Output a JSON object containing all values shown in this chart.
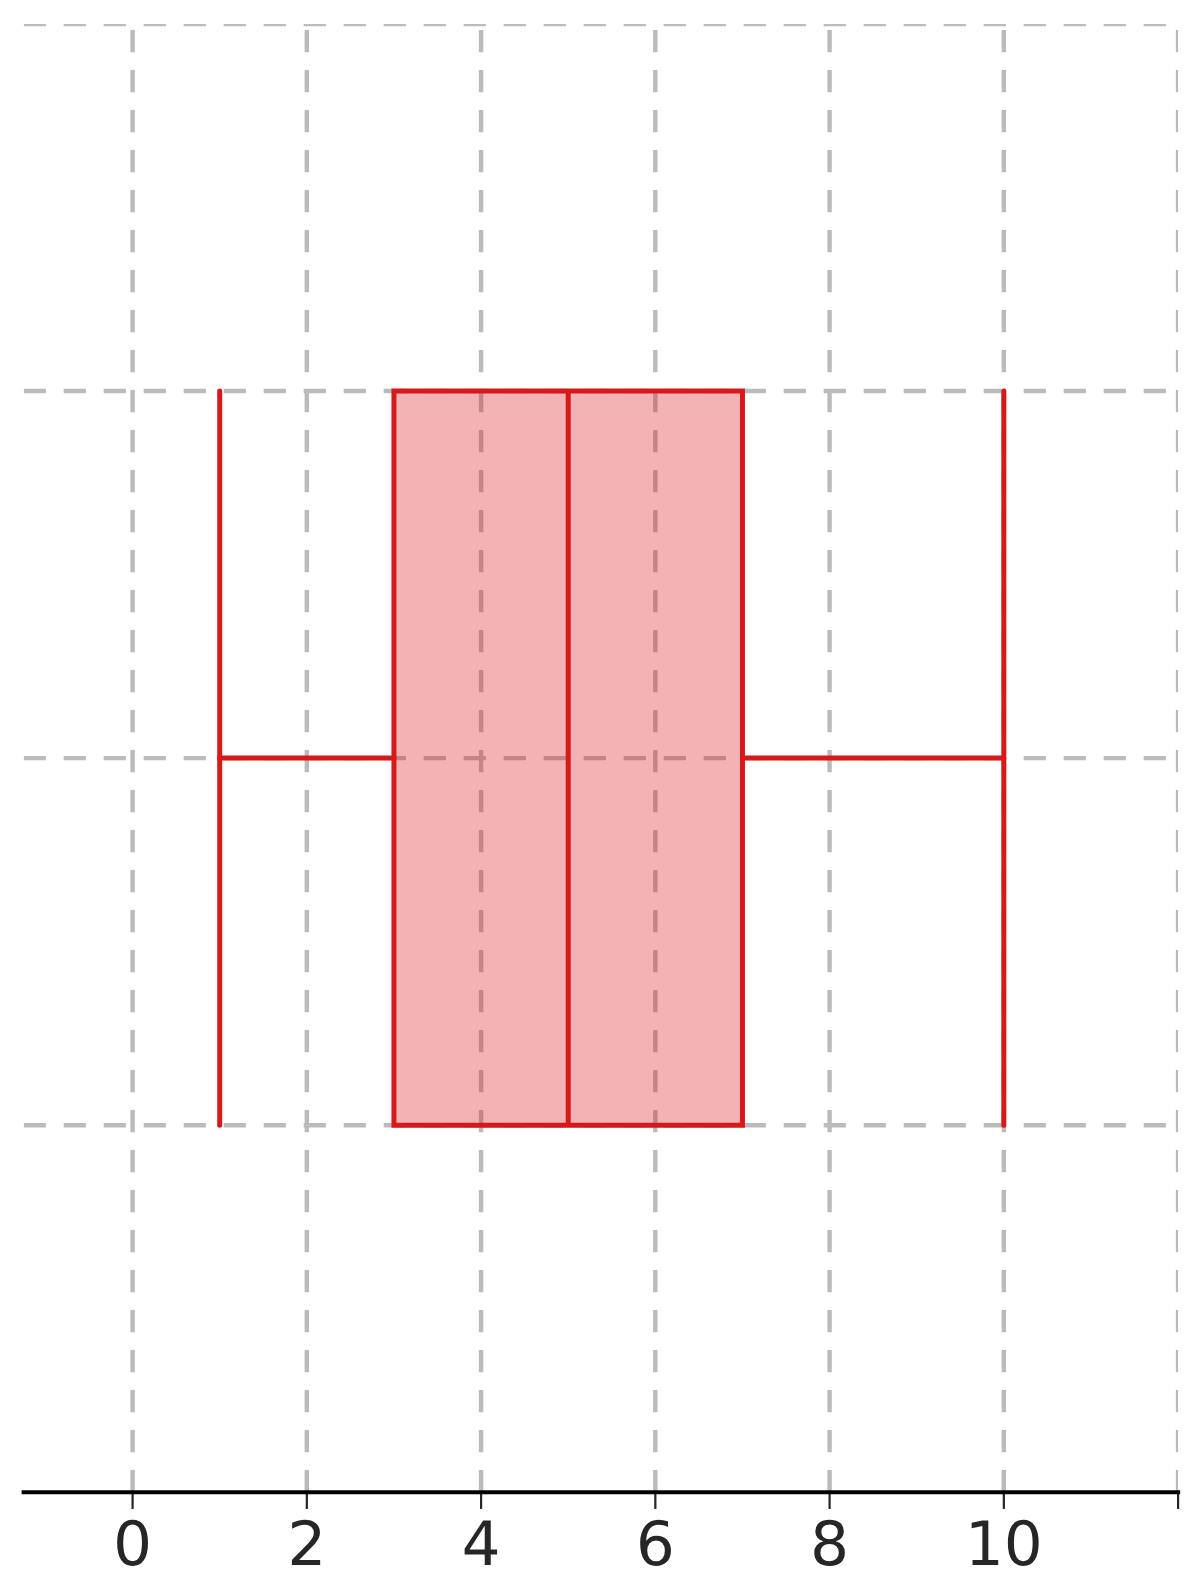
{
  "chart_data": {
    "type": "box",
    "orientation": "horizontal",
    "categories": [
      null
    ],
    "boxes": [
      {
        "low": 1,
        "q1": 3,
        "median": 5,
        "q3": 7,
        "high": 10
      }
    ],
    "color": "#d7191c",
    "xlim": [
      -1.25,
      12
    ],
    "xticks": [
      0,
      2,
      4,
      6,
      8,
      10,
      {
        "value": 12,
        "label": null
      }
    ],
    "grid": true,
    "tick_labels": "x"
  }
}
